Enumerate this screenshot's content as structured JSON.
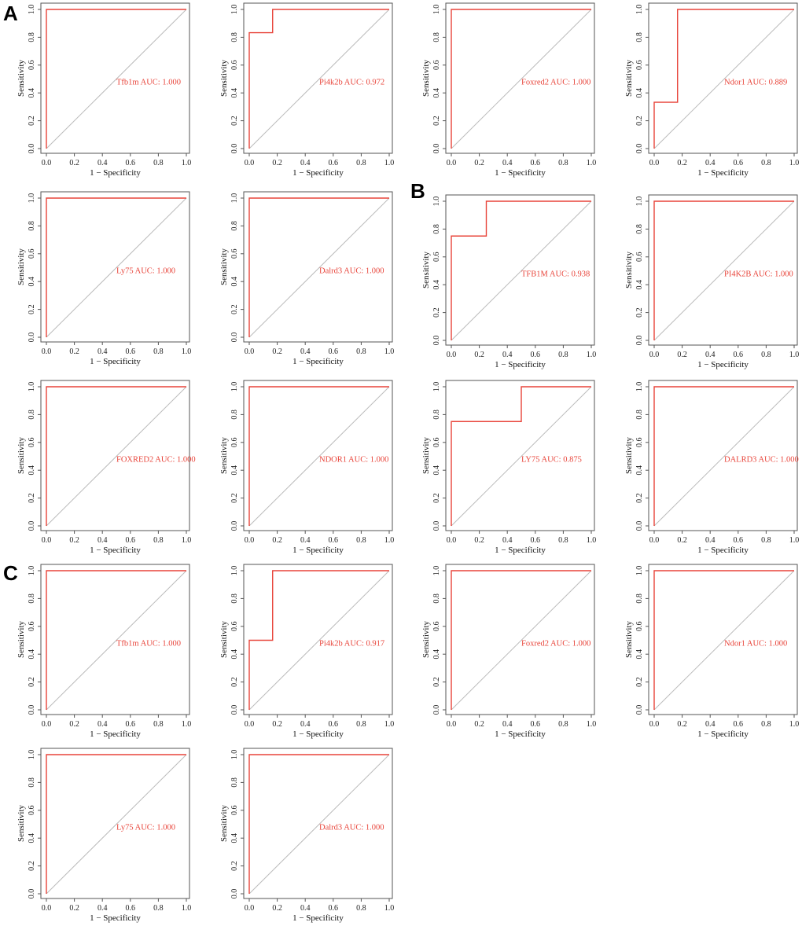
{
  "panel_labels": [
    {
      "text": "A"
    },
    {
      "text": "B"
    },
    {
      "text": "C"
    }
  ],
  "colors": {
    "roc": "#e8443a",
    "diagonal": "#bbbbbb",
    "axis": "#555555"
  },
  "chart_data": [
    {
      "type": "line",
      "group": "A",
      "title": "",
      "label": "Tfb1m AUC: 1.000",
      "auc": 1.0,
      "fpr": [
        0,
        0,
        1
      ],
      "tpr": [
        0,
        1,
        1
      ],
      "xlabel": "1 − Specificity",
      "ylabel": "Sensitivity",
      "xlim": [
        0,
        1
      ],
      "ylim": [
        0,
        1
      ],
      "xticks": [
        "0.0",
        "0.2",
        "0.4",
        "0.6",
        "0.8",
        "1.0"
      ],
      "yticks": [
        "0.0",
        "0.2",
        "0.4",
        "0.6",
        "0.8",
        "1.0"
      ]
    },
    {
      "type": "line",
      "group": "A",
      "label": "Pi4k2b AUC: 0.972",
      "auc": 0.972,
      "fpr": [
        0,
        0,
        0.167,
        0.167,
        1
      ],
      "tpr": [
        0,
        0.833,
        0.833,
        1,
        1
      ],
      "xlabel": "1 − Specificity",
      "ylabel": "Sensitivity",
      "xlim": [
        0,
        1
      ],
      "ylim": [
        0,
        1
      ],
      "xticks": [
        "0.0",
        "0.2",
        "0.4",
        "0.6",
        "0.8",
        "1.0"
      ],
      "yticks": [
        "0.0",
        "0.2",
        "0.4",
        "0.6",
        "0.8",
        "1.0"
      ]
    },
    {
      "type": "line",
      "group": "A",
      "label": "Foxred2 AUC: 1.000",
      "auc": 1.0,
      "fpr": [
        0,
        0,
        1
      ],
      "tpr": [
        0,
        1,
        1
      ],
      "xlabel": "1 − Specificity",
      "ylabel": "Sensitivity",
      "xlim": [
        0,
        1
      ],
      "ylim": [
        0,
        1
      ],
      "xticks": [
        "0.0",
        "0.2",
        "0.4",
        "0.6",
        "0.8",
        "1.0"
      ],
      "yticks": [
        "0.0",
        "0.2",
        "0.4",
        "0.6",
        "0.8",
        "1.0"
      ]
    },
    {
      "type": "line",
      "group": "A",
      "label": "Ndor1 AUC: 0.889",
      "auc": 0.889,
      "fpr": [
        0,
        0,
        0.167,
        0.167,
        1
      ],
      "tpr": [
        0,
        0.333,
        0.333,
        1,
        1
      ],
      "xlabel": "1 − Specificity",
      "ylabel": "Sensitivity",
      "xlim": [
        0,
        1
      ],
      "ylim": [
        0,
        1
      ],
      "xticks": [
        "0.0",
        "0.2",
        "0.4",
        "0.6",
        "0.8",
        "1.0"
      ],
      "yticks": [
        "0.0",
        "0.2",
        "0.4",
        "0.6",
        "0.8",
        "1.0"
      ]
    },
    {
      "type": "line",
      "group": "A",
      "label": "Ly75 AUC: 1.000",
      "auc": 1.0,
      "fpr": [
        0,
        0,
        1
      ],
      "tpr": [
        0,
        1,
        1
      ],
      "xlabel": "1 − Specificity",
      "ylabel": "Sensitivity",
      "xlim": [
        0,
        1
      ],
      "ylim": [
        0,
        1
      ],
      "xticks": [
        "0.0",
        "0.2",
        "0.4",
        "0.6",
        "0.8",
        "1.0"
      ],
      "yticks": [
        "0.0",
        "0.2",
        "0.4",
        "0.6",
        "0.8",
        "1.0"
      ]
    },
    {
      "type": "line",
      "group": "A",
      "label": "Dalrd3 AUC: 1.000",
      "auc": 1.0,
      "fpr": [
        0,
        0,
        1
      ],
      "tpr": [
        0,
        1,
        1
      ],
      "xlabel": "1 − Specificity",
      "ylabel": "Sensitivity",
      "xlim": [
        0,
        1
      ],
      "ylim": [
        0,
        1
      ],
      "xticks": [
        "0.0",
        "0.2",
        "0.4",
        "0.6",
        "0.8",
        "1.0"
      ],
      "yticks": [
        "0.0",
        "0.2",
        "0.4",
        "0.6",
        "0.8",
        "1.0"
      ]
    },
    {
      "type": "line",
      "group": "B",
      "label": "TFB1M AUC: 0.938",
      "auc": 0.938,
      "fpr": [
        0,
        0,
        0.25,
        0.25,
        1
      ],
      "tpr": [
        0,
        0.75,
        0.75,
        1,
        1
      ],
      "xlabel": "1 − Specificity",
      "ylabel": "Sensitivity",
      "xlim": [
        0,
        1
      ],
      "ylim": [
        0,
        1
      ],
      "xticks": [
        "0.0",
        "0.2",
        "0.4",
        "0.6",
        "0.8",
        "1.0"
      ],
      "yticks": [
        "0.0",
        "0.2",
        "0.4",
        "0.6",
        "0.8",
        "1.0"
      ]
    },
    {
      "type": "line",
      "group": "B",
      "label": "PI4K2B AUC: 1.000",
      "auc": 1.0,
      "fpr": [
        0,
        0,
        1
      ],
      "tpr": [
        0,
        1,
        1
      ],
      "xlabel": "1 − Specificity",
      "ylabel": "Sensitivity",
      "xlim": [
        0,
        1
      ],
      "ylim": [
        0,
        1
      ],
      "xticks": [
        "0.0",
        "0.2",
        "0.4",
        "0.6",
        "0.8",
        "1.0"
      ],
      "yticks": [
        "0.0",
        "0.2",
        "0.4",
        "0.6",
        "0.8",
        "1.0"
      ]
    },
    {
      "type": "line",
      "group": "B",
      "label": "FOXRED2 AUC: 1.000",
      "auc": 1.0,
      "fpr": [
        0,
        0,
        1
      ],
      "tpr": [
        0,
        1,
        1
      ],
      "xlabel": "1 − Specificity",
      "ylabel": "Sensitivity",
      "xlim": [
        0,
        1
      ],
      "ylim": [
        0,
        1
      ],
      "xticks": [
        "0.0",
        "0.2",
        "0.4",
        "0.6",
        "0.8",
        "1.0"
      ],
      "yticks": [
        "0.0",
        "0.2",
        "0.4",
        "0.6",
        "0.8",
        "1.0"
      ]
    },
    {
      "type": "line",
      "group": "B",
      "label": "NDOR1 AUC: 1.000",
      "auc": 1.0,
      "fpr": [
        0,
        0,
        1
      ],
      "tpr": [
        0,
        1,
        1
      ],
      "xlabel": "1 − Specificity",
      "ylabel": "Sensitivity",
      "xlim": [
        0,
        1
      ],
      "ylim": [
        0,
        1
      ],
      "xticks": [
        "0.0",
        "0.2",
        "0.4",
        "0.6",
        "0.8",
        "1.0"
      ],
      "yticks": [
        "0.0",
        "0.2",
        "0.4",
        "0.6",
        "0.8",
        "1.0"
      ]
    },
    {
      "type": "line",
      "group": "B",
      "label": "LY75 AUC: 0.875",
      "auc": 0.875,
      "fpr": [
        0,
        0,
        0.5,
        0.5,
        1
      ],
      "tpr": [
        0,
        0.75,
        0.75,
        1,
        1
      ],
      "xlabel": "1 − Specificity",
      "ylabel": "Sensitivity",
      "xlim": [
        0,
        1
      ],
      "ylim": [
        0,
        1
      ],
      "xticks": [
        "0.0",
        "0.2",
        "0.4",
        "0.6",
        "0.8",
        "1.0"
      ],
      "yticks": [
        "0.0",
        "0.2",
        "0.4",
        "0.6",
        "0.8",
        "1.0"
      ]
    },
    {
      "type": "line",
      "group": "B",
      "label": "DALRD3 AUC: 1.000",
      "auc": 1.0,
      "fpr": [
        0,
        0,
        1
      ],
      "tpr": [
        0,
        1,
        1
      ],
      "xlabel": "1 − Specificity",
      "ylabel": "Sensitivity",
      "xlim": [
        0,
        1
      ],
      "ylim": [
        0,
        1
      ],
      "xticks": [
        "0.0",
        "0.2",
        "0.4",
        "0.6",
        "0.8",
        "1.0"
      ],
      "yticks": [
        "0.0",
        "0.2",
        "0.4",
        "0.6",
        "0.8",
        "1.0"
      ]
    },
    {
      "type": "line",
      "group": "C",
      "label": "Tfb1m AUC: 1.000",
      "auc": 1.0,
      "fpr": [
        0,
        0,
        1
      ],
      "tpr": [
        0,
        1,
        1
      ],
      "xlabel": "1 − Specificity",
      "ylabel": "Sensitivity",
      "xlim": [
        0,
        1
      ],
      "ylim": [
        0,
        1
      ],
      "xticks": [
        "0.0",
        "0.2",
        "0.4",
        "0.6",
        "0.8",
        "1.0"
      ],
      "yticks": [
        "0.0",
        "0.2",
        "0.4",
        "0.6",
        "0.8",
        "1.0"
      ]
    },
    {
      "type": "line",
      "group": "C",
      "label": "Pi4k2b AUC: 0.917",
      "auc": 0.917,
      "fpr": [
        0,
        0,
        0.167,
        0.167,
        1
      ],
      "tpr": [
        0,
        0.5,
        0.5,
        1,
        1
      ],
      "xlabel": "1 − Specificity",
      "ylabel": "Sensitivity",
      "xlim": [
        0,
        1
      ],
      "ylim": [
        0,
        1
      ],
      "xticks": [
        "0.0",
        "0.2",
        "0.4",
        "0.6",
        "0.8",
        "1.0"
      ],
      "yticks": [
        "0.0",
        "0.2",
        "0.4",
        "0.6",
        "0.8",
        "1.0"
      ]
    },
    {
      "type": "line",
      "group": "C",
      "label": "Foxred2 AUC: 1.000",
      "auc": 1.0,
      "fpr": [
        0,
        0,
        1
      ],
      "tpr": [
        0,
        1,
        1
      ],
      "xlabel": "1 − Specificity",
      "ylabel": "Sensitivity",
      "xlim": [
        0,
        1
      ],
      "ylim": [
        0,
        1
      ],
      "xticks": [
        "0.0",
        "0.2",
        "0.4",
        "0.6",
        "0.8",
        "1.0"
      ],
      "yticks": [
        "0.0",
        "0.2",
        "0.4",
        "0.6",
        "0.8",
        "1.0"
      ]
    },
    {
      "type": "line",
      "group": "C",
      "label": "Ndor1 AUC: 1.000",
      "auc": 1.0,
      "fpr": [
        0,
        0,
        1
      ],
      "tpr": [
        0,
        1,
        1
      ],
      "xlabel": "1 − Specificity",
      "ylabel": "Sensitivity",
      "xlim": [
        0,
        1
      ],
      "ylim": [
        0,
        1
      ],
      "xticks": [
        "0.0",
        "0.2",
        "0.4",
        "0.6",
        "0.8",
        "1.0"
      ],
      "yticks": [
        "0.0",
        "0.2",
        "0.4",
        "0.6",
        "0.8",
        "1.0"
      ]
    },
    {
      "type": "line",
      "group": "C",
      "label": "Ly75 AUC: 1.000",
      "auc": 1.0,
      "fpr": [
        0,
        0,
        1
      ],
      "tpr": [
        0,
        1,
        1
      ],
      "xlabel": "1 − Specificity",
      "ylabel": "Sensitivity",
      "xlim": [
        0,
        1
      ],
      "ylim": [
        0,
        1
      ],
      "xticks": [
        "0.0",
        "0.2",
        "0.4",
        "0.6",
        "0.8",
        "1.0"
      ],
      "yticks": [
        "0.0",
        "0.2",
        "0.4",
        "0.6",
        "0.8",
        "1.0"
      ]
    },
    {
      "type": "line",
      "group": "C",
      "label": "Dalrd3 AUC: 1.000",
      "auc": 1.0,
      "fpr": [
        0,
        0,
        1
      ],
      "tpr": [
        0,
        1,
        1
      ],
      "xlabel": "1 − Specificity",
      "ylabel": "Sensitivity",
      "xlim": [
        0,
        1
      ],
      "ylim": [
        0,
        1
      ],
      "xticks": [
        "0.0",
        "0.2",
        "0.4",
        "0.6",
        "0.8",
        "1.0"
      ],
      "yticks": [
        "0.0",
        "0.2",
        "0.4",
        "0.6",
        "0.8",
        "1.0"
      ]
    }
  ]
}
